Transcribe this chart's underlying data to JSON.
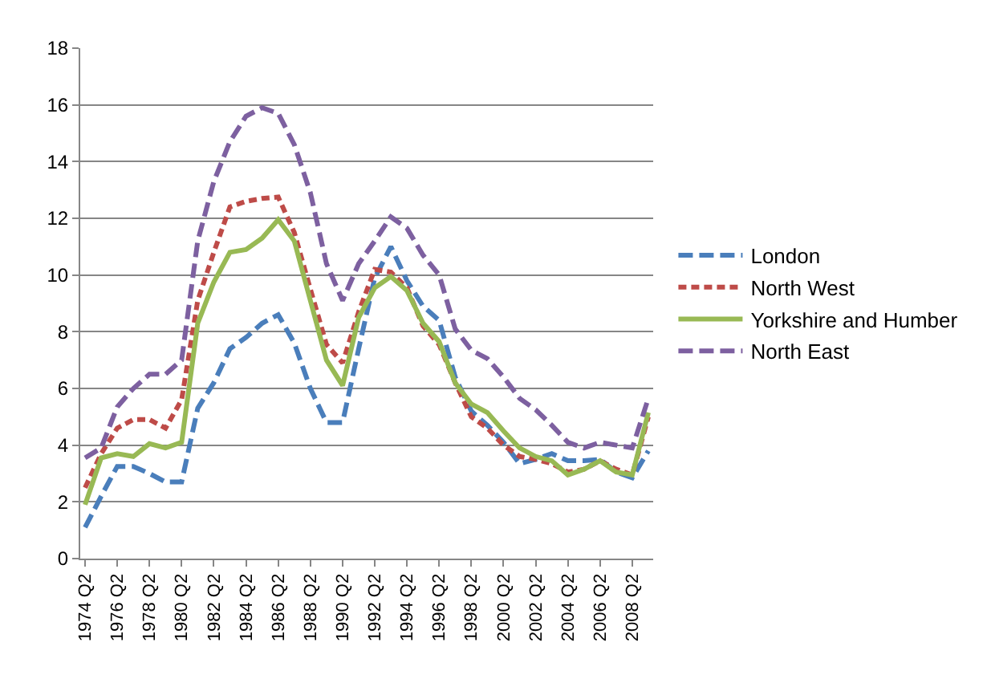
{
  "chart_data": {
    "type": "line",
    "categories": [
      "1974 Q2",
      null,
      "1976 Q2",
      null,
      "1978 Q2",
      null,
      "1980 Q2",
      null,
      "1982 Q2",
      null,
      "1984 Q2",
      null,
      "1986 Q2",
      null,
      "1988 Q2",
      null,
      "1990 Q2",
      null,
      "1992 Q2",
      null,
      "1994 Q2",
      null,
      "1996 Q2",
      null,
      "1998 Q2",
      null,
      "2000 Q2",
      null,
      "2002 Q2",
      null,
      "2004 Q2",
      null,
      "2006 Q2",
      null,
      "2008 Q2",
      null
    ],
    "series": [
      {
        "name": "London",
        "color": "#4a7ebb",
        "line_style": "dashed",
        "values": [
          1.1,
          2.2,
          3.25,
          3.25,
          3.0,
          2.7,
          2.7,
          5.3,
          6.2,
          7.4,
          7.8,
          8.3,
          8.6,
          7.6,
          6.0,
          4.8,
          4.8,
          7.4,
          9.9,
          11.0,
          9.8,
          8.9,
          8.4,
          6.4,
          5.2,
          4.7,
          4.1,
          3.35,
          3.5,
          3.7,
          3.45,
          3.45,
          3.5,
          3.05,
          2.85,
          3.8
        ]
      },
      {
        "name": "North West",
        "color": "#be4b48",
        "line_style": "dotted",
        "values": [
          2.5,
          3.7,
          4.6,
          4.9,
          4.9,
          4.6,
          5.6,
          9.1,
          10.8,
          12.4,
          12.6,
          12.7,
          12.75,
          11.5,
          9.5,
          7.55,
          6.9,
          8.7,
          10.2,
          10.1,
          9.55,
          8.2,
          7.55,
          6.2,
          5.0,
          4.6,
          4.0,
          3.6,
          3.5,
          3.35,
          3.05,
          3.15,
          3.45,
          3.15,
          2.95,
          5.0
        ]
      },
      {
        "name": "Yorkshire and Humber",
        "color": "#98b954",
        "line_style": "solid",
        "values": [
          1.9,
          3.55,
          3.7,
          3.6,
          4.05,
          3.9,
          4.1,
          8.3,
          9.75,
          10.8,
          10.9,
          11.3,
          11.95,
          11.2,
          9.1,
          7.0,
          6.1,
          8.5,
          9.55,
          9.95,
          9.45,
          8.3,
          7.65,
          6.2,
          5.45,
          5.15,
          4.5,
          3.9,
          3.6,
          3.45,
          2.95,
          3.15,
          3.45,
          3.05,
          2.95,
          5.15
        ]
      },
      {
        "name": "North East",
        "color": "#7d60a0",
        "line_style": "dashed",
        "values": [
          3.55,
          3.9,
          5.35,
          6.0,
          6.5,
          6.5,
          7.0,
          11.2,
          13.3,
          14.7,
          15.6,
          15.9,
          15.7,
          14.6,
          12.9,
          10.4,
          9.1,
          10.4,
          11.2,
          12.05,
          11.65,
          10.7,
          10.0,
          8.1,
          7.35,
          7.05,
          6.4,
          5.65,
          5.25,
          4.7,
          4.1,
          3.9,
          4.1,
          4.0,
          3.9,
          5.65
        ]
      }
    ],
    "ylim": [
      0,
      18
    ],
    "yticks": [
      0,
      2,
      4,
      6,
      8,
      10,
      12,
      14,
      16,
      18
    ],
    "grid": "y",
    "legend": "right",
    "marker": "none"
  }
}
